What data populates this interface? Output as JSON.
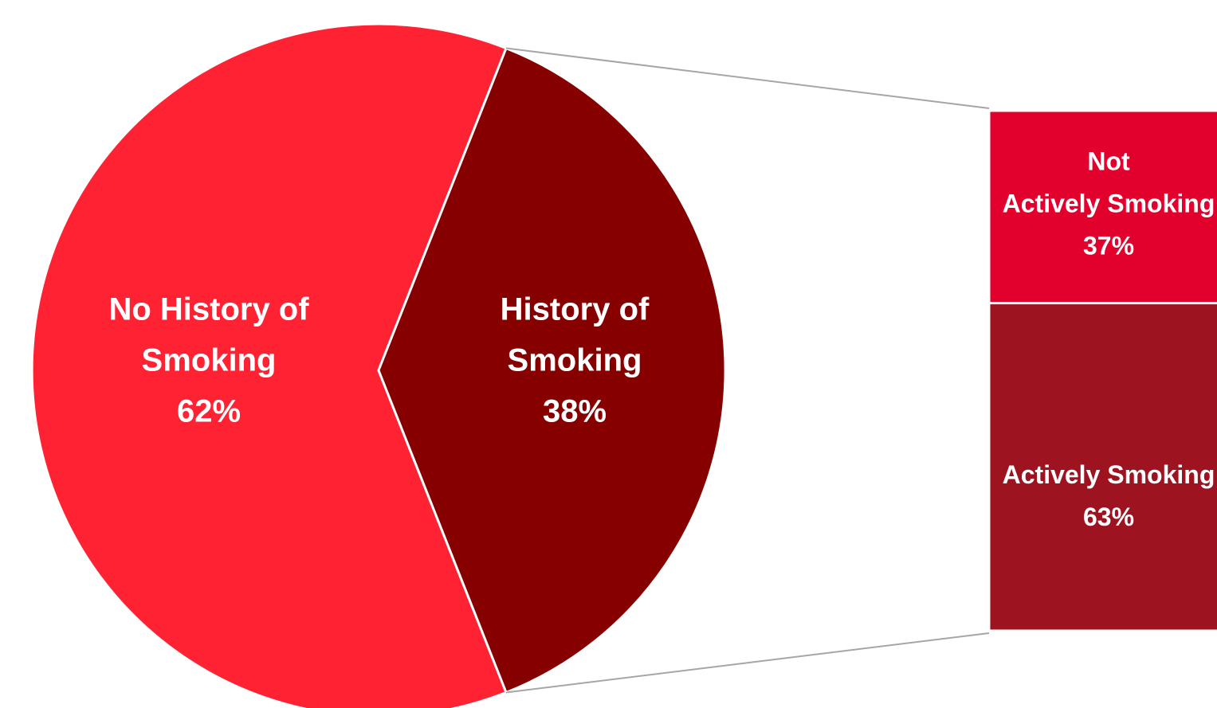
{
  "chart_data": {
    "type": "pie",
    "pie": {
      "slices": [
        {
          "label_lines": [
            "No History of",
            "Smoking"
          ],
          "value": 62,
          "value_text": "62%",
          "color": "#FF2233"
        },
        {
          "label_lines": [
            "History of",
            "Smoking"
          ],
          "value": 38,
          "value_text": "38%",
          "color": "#860000"
        }
      ]
    },
    "breakdown": {
      "type": "bar",
      "stacked": true,
      "of_slice": "History of Smoking",
      "segments": [
        {
          "label_lines": [
            "Not",
            "Actively Smoking"
          ],
          "value": 37,
          "value_text": "37%",
          "color": "#E2002D"
        },
        {
          "label_lines": [
            "Actively Smoking"
          ],
          "value": 63,
          "value_text": "63%",
          "color": "#9E1320"
        }
      ]
    },
    "connector_color": "#A6A6A6"
  }
}
